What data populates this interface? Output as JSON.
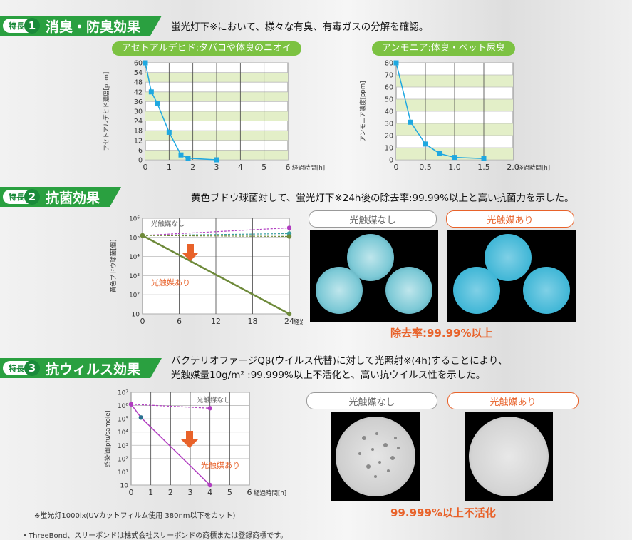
{
  "feature_label": "特長",
  "sections": [
    {
      "num": "1",
      "title": "消臭・防臭効果",
      "desc": "蛍光灯下※において、様々な有臭、有毒ガスの分解を確認。"
    },
    {
      "num": "2",
      "title": "抗菌効果",
      "desc": "黄色ブドウ球菌対して、蛍光灯下※24h後の除去率:99.99%以上と高い抗菌力を示した。"
    },
    {
      "num": "3",
      "title": "抗ウィルス効果",
      "desc1": "バクテリオファージQβ(ウイルス代替)に対して光照射※(4h)することにより、",
      "desc2": "光触媒量10g/m² :99.999%以上不活化と、高い抗ウイルス性を示した。"
    }
  ],
  "chips": {
    "without": "光触媒なし",
    "with": "光触媒あり"
  },
  "results": {
    "bacteria": "除去率:99.99%以上",
    "virus": "99.999%以上不活化"
  },
  "footnote": "※蛍光灯1000lx(UVカットフィルム使用 380nm以下をカット)",
  "footer": "・ThreeBond、スリーボンドは株式会社スリーボンドの商標または登録商標です。",
  "colors": {
    "green": "#2aa040",
    "lightgreen": "#7cc242",
    "blue": "#1fa8e0",
    "orange": "#e8622a",
    "olive": "#6e8a3a",
    "purple": "#b03cc0"
  },
  "chart_data": [
    {
      "type": "line",
      "title": "アセトアルデヒド:タバコや体臭のニオイ",
      "ylabel": "アセトアルデヒド濃度[ppm]",
      "xlabel": "経過時間[h]",
      "yticks": [
        "0",
        "6",
        "12",
        "18",
        "24",
        "30",
        "36",
        "42",
        "48",
        "54",
        "60"
      ],
      "xticks": [
        "0",
        "1",
        "2",
        "3",
        "4",
        "5",
        "6"
      ],
      "xlim": [
        0,
        6
      ],
      "ylim": [
        0,
        60
      ],
      "series": [
        {
          "x": [
            0,
            0.25,
            0.5,
            1,
            1.5,
            1.8,
            3
          ],
          "y": [
            60,
            42,
            35,
            17,
            3,
            1,
            0
          ]
        }
      ]
    },
    {
      "type": "line",
      "title": "アンモニア:体臭・ペット尿臭",
      "ylabel": "アンモニア濃度[ppm]",
      "xlabel": "経過時間[h]",
      "yticks": [
        "0",
        "10",
        "20",
        "30",
        "40",
        "50",
        "60",
        "70",
        "80"
      ],
      "xticks": [
        "0",
        "0.5",
        "1.0",
        "1.5",
        "2.0"
      ],
      "xlim": [
        0,
        2
      ],
      "ylim": [
        0,
        80
      ],
      "series": [
        {
          "x": [
            0,
            0.25,
            0.5,
            0.75,
            1.0,
            1.5
          ],
          "y": [
            80,
            31,
            13,
            5,
            2,
            1
          ]
        }
      ]
    },
    {
      "type": "line",
      "ylabel": "黄色ブドウ球菌[個]",
      "xlabel": "経過時間[h]",
      "yscale": "log",
      "yticks": [
        "10",
        "10²",
        "10³",
        "10⁴",
        "10⁵",
        "10⁶"
      ],
      "xticks": [
        "0",
        "6",
        "12",
        "18",
        "24"
      ],
      "xlim": [
        0,
        24
      ],
      "ylim": [
        1,
        6
      ],
      "annotations": [
        "光触媒なし",
        "光触媒あり"
      ],
      "series": [
        {
          "name": "光触媒なし",
          "x": [
            0,
            24
          ],
          "y": [
            5.1,
            5.5
          ]
        },
        {
          "name": "光触媒なし",
          "x": [
            0,
            24
          ],
          "y": [
            5.1,
            5.2
          ]
        },
        {
          "name": "光触媒なし",
          "x": [
            0,
            24
          ],
          "y": [
            5.1,
            5.05
          ]
        },
        {
          "name": "光触媒あり",
          "x": [
            0,
            24
          ],
          "y": [
            5.1,
            1.0
          ]
        }
      ]
    },
    {
      "type": "line",
      "ylabel": "感染価[pfu/samole]",
      "xlabel": "経過時間[h]",
      "yscale": "log",
      "yticks": [
        "10",
        "10¹",
        "10²",
        "10³",
        "10⁴",
        "10⁵",
        "10⁶",
        "10⁷"
      ],
      "xticks": [
        "0",
        "1",
        "2",
        "3",
        "4",
        "5",
        "6"
      ],
      "xlim": [
        0,
        6
      ],
      "ylim": [
        0,
        7
      ],
      "annotations": [
        "光触媒なし",
        "光触媒あり"
      ],
      "series": [
        {
          "name": "光触媒なし",
          "x": [
            0,
            4
          ],
          "y": [
            6.1,
            5.8
          ]
        },
        {
          "name": "光触媒あり",
          "x": [
            0,
            0.5,
            4
          ],
          "y": [
            6.1,
            5.1,
            0
          ]
        }
      ]
    }
  ]
}
